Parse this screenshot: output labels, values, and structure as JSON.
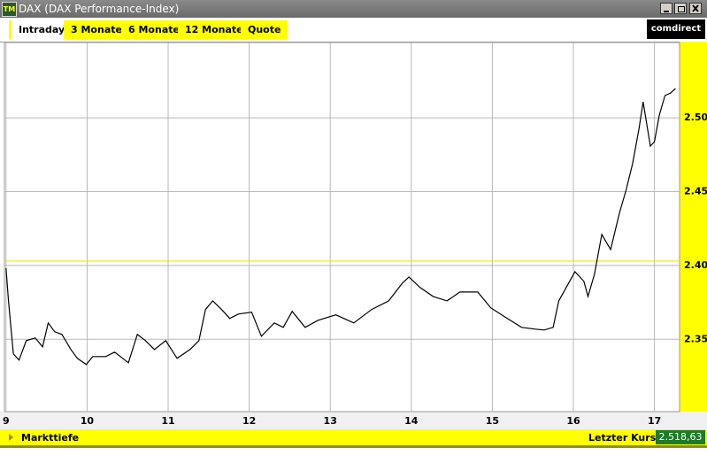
{
  "window": {
    "title": "DAX (DAX Performance-Index)",
    "icon": "TM"
  },
  "tabs": [
    "Intraday",
    "3 Monate",
    "6 Monate",
    "12 Monate",
    "Quote"
  ],
  "brand": "comdirect",
  "footer": {
    "link": "Markttiefe",
    "last_label": "Letzter Kurs",
    "last_value": "2.518,63"
  },
  "chart_data": {
    "type": "line",
    "x": [
      9.0,
      9.03,
      9.09,
      9.16,
      9.25,
      9.36,
      9.45,
      9.52,
      9.6,
      9.69,
      9.8,
      9.88,
      9.99,
      10.07,
      10.23,
      10.34,
      10.51,
      10.62,
      10.72,
      10.83,
      10.97,
      11.11,
      11.27,
      11.38,
      11.46,
      11.55,
      11.66,
      11.76,
      11.87,
      12.03,
      12.15,
      12.31,
      12.42,
      12.53,
      12.69,
      12.85,
      13.07,
      13.29,
      13.51,
      13.72,
      13.89,
      13.97,
      14.11,
      14.27,
      14.44,
      14.6,
      14.82,
      14.98,
      15.15,
      15.36,
      15.53,
      15.64,
      15.75,
      15.82,
      15.91,
      16.02,
      16.13,
      16.18,
      16.26,
      16.35,
      16.46,
      16.57,
      16.65,
      16.73,
      16.81,
      16.86,
      16.95,
      17.0,
      17.06,
      17.13,
      17.2,
      17.26
    ],
    "series": [
      {
        "color": "#000000",
        "values": [
          2398.2,
          2376.0,
          2340.1,
          2335.9,
          2349.1,
          2350.9,
          2344.9,
          2361.1,
          2355.1,
          2353.3,
          2343.1,
          2337.1,
          2332.9,
          2338.3,
          2338.3,
          2341.3,
          2334.1,
          2353.3,
          2349.1,
          2343.1,
          2349.1,
          2337.1,
          2343.1,
          2349.1,
          2370.1,
          2376.0,
          2370.1,
          2364.1,
          2367.1,
          2368.3,
          2352.1,
          2361.1,
          2358.1,
          2368.9,
          2358.1,
          2362.9,
          2366.5,
          2361.1,
          2370.1,
          2376.0,
          2388.0,
          2392.2,
          2385.0,
          2379.0,
          2376.0,
          2382.0,
          2382.0,
          2371.3,
          2365.3,
          2358.1,
          2356.9,
          2356.3,
          2358.1,
          2376.0,
          2385.0,
          2395.8,
          2389.2,
          2379.0,
          2394.0,
          2421.0,
          2410.8,
          2435.9,
          2450.9,
          2468.9,
          2492.8,
          2510.8,
          2480.8,
          2483.8,
          2501.8,
          2515.0,
          2516.8,
          2519.8
        ]
      }
    ],
    "xlim": [
      8.98,
      17.31
    ],
    "xticks": [
      9,
      10,
      11,
      12,
      13,
      14,
      15,
      16,
      17
    ],
    "ylim": [
      2301,
      2551
    ],
    "yticks": [
      {
        "value": 2350,
        "label": "2.350"
      },
      {
        "value": 2400,
        "label": "2.400"
      },
      {
        "value": 2450,
        "label": "2.450"
      },
      {
        "value": 2500,
        "label": "2.500"
      }
    ],
    "grid": true,
    "grid_color": "#b8b8b8",
    "reference_line": {
      "value": 2403,
      "color": "#e6e600"
    }
  }
}
